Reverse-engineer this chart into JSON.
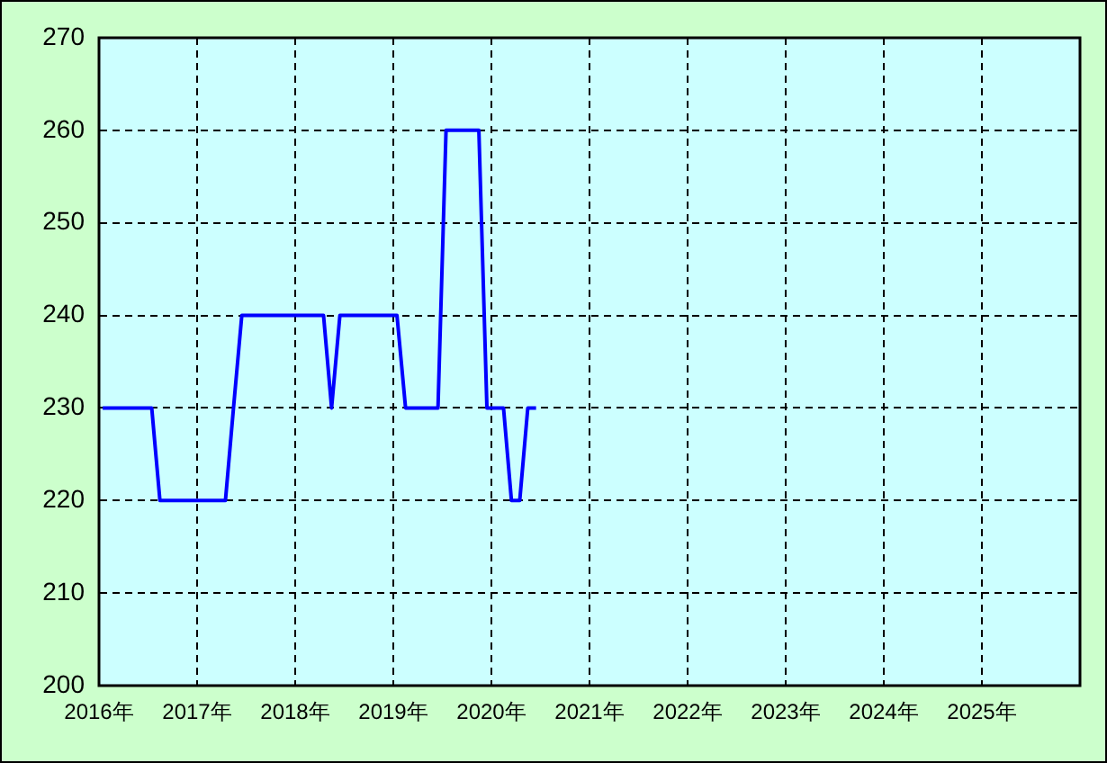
{
  "chart_data": {
    "type": "line",
    "x": [
      "2016-01-15",
      "2016-02-15",
      "2016-03-15",
      "2016-04-15",
      "2016-05-15",
      "2016-06-15",
      "2016-07-15",
      "2016-08-15",
      "2016-09-15",
      "2016-10-15",
      "2016-11-15",
      "2016-12-15",
      "2017-01-15",
      "2017-02-15",
      "2017-03-15",
      "2017-04-15",
      "2017-05-15",
      "2017-06-15",
      "2017-07-15",
      "2017-08-15",
      "2017-09-15",
      "2017-10-15",
      "2017-11-15",
      "2017-12-15",
      "2018-01-15",
      "2018-02-15",
      "2018-03-15",
      "2018-04-15",
      "2018-05-15",
      "2018-06-15",
      "2018-07-15",
      "2018-08-15",
      "2018-09-15",
      "2018-10-15",
      "2018-11-15",
      "2018-12-15",
      "2019-01-15",
      "2019-02-15",
      "2019-03-15",
      "2019-04-15",
      "2019-05-15",
      "2019-06-15",
      "2019-07-15",
      "2019-08-15",
      "2019-09-15",
      "2019-10-15",
      "2019-11-15",
      "2019-12-15",
      "2020-01-15",
      "2020-02-15",
      "2020-03-15",
      "2020-04-15",
      "2020-05-15",
      "2020-06-15"
    ],
    "series": [
      {
        "color": "#0000ff",
        "values": [
          230,
          230,
          230,
          230,
          230,
          230,
          230,
          220,
          220,
          220,
          220,
          220,
          220,
          220,
          220,
          220,
          230,
          240,
          240,
          240,
          240,
          240,
          240,
          240,
          240,
          240,
          240,
          240,
          230,
          240,
          240,
          240,
          240,
          240,
          240,
          240,
          240,
          230,
          230,
          230,
          230,
          230,
          260,
          260,
          260,
          260,
          260,
          230,
          230,
          230,
          220,
          220,
          230,
          230
        ]
      }
    ],
    "xlim": [
      "2016-01-01",
      "2026-01-01"
    ],
    "xticks": [
      {
        "value": "2016-01-01",
        "label": "2016年"
      },
      {
        "value": "2017-01-01",
        "label": "2017年"
      },
      {
        "value": "2018-01-01",
        "label": "2018年"
      },
      {
        "value": "2019-01-01",
        "label": "2019年"
      },
      {
        "value": "2020-01-01",
        "label": "2020年"
      },
      {
        "value": "2021-01-01",
        "label": "2021年"
      },
      {
        "value": "2022-01-01",
        "label": "2022年"
      },
      {
        "value": "2023-01-01",
        "label": "2023年"
      },
      {
        "value": "2024-01-01",
        "label": "2024年"
      },
      {
        "value": "2025-01-01",
        "label": "2025年"
      }
    ],
    "ylim": [
      200,
      270
    ],
    "yticks": [
      200,
      210,
      220,
      230,
      240,
      250,
      260,
      270
    ],
    "grid": true,
    "legend": false,
    "marker": "none",
    "line_style": "solid"
  }
}
